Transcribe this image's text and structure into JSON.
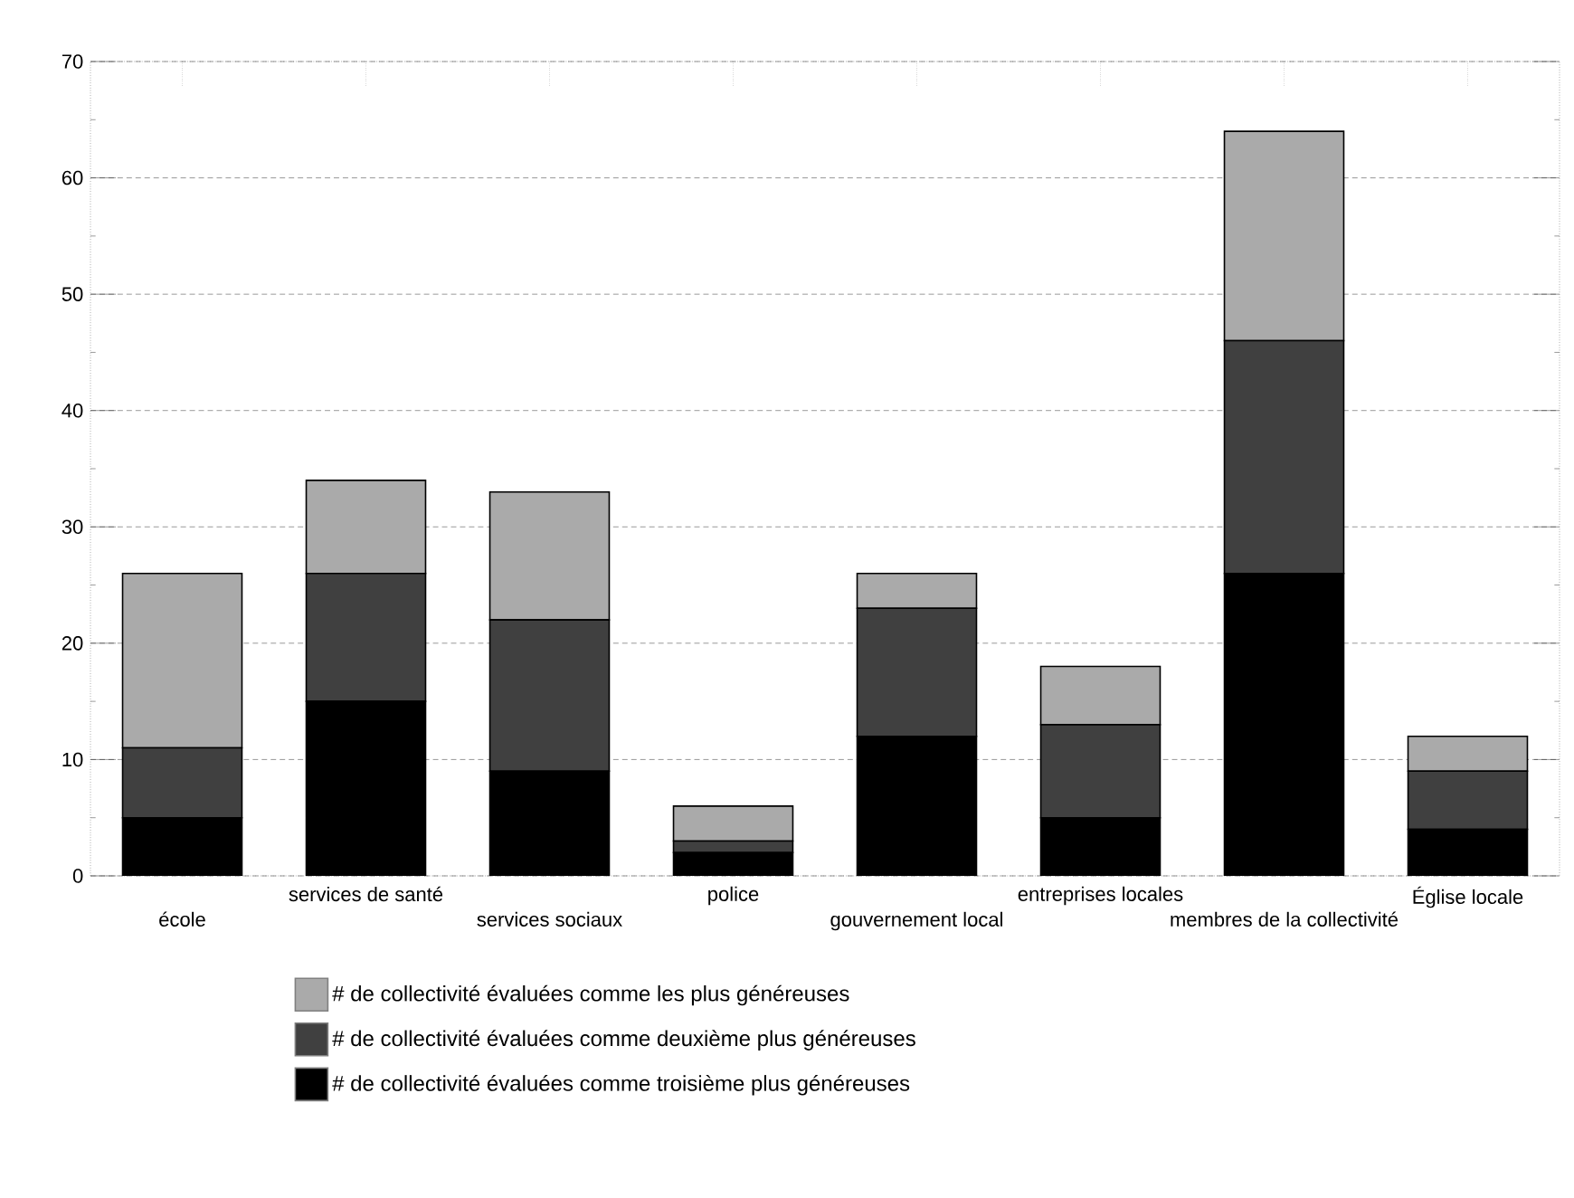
{
  "chart_data": {
    "type": "bar",
    "stacked": true,
    "categories": [
      "école",
      "services de santé",
      "services sociaux",
      "police",
      "gouvernement local",
      "entreprises locales",
      "membres de la collectivité",
      "Église locale"
    ],
    "series": [
      {
        "name": "# de collectivité évaluées comme troisième plus généreuses",
        "color": "#000000",
        "values": [
          5,
          15,
          9,
          2,
          12,
          5,
          26,
          4
        ]
      },
      {
        "name": "# de collectivité évaluées comme deuxième plus généreuses",
        "color": "#404040",
        "values": [
          6,
          11,
          13,
          1,
          11,
          8,
          20,
          5
        ]
      },
      {
        "name": "# de collectivité évaluées comme les plus généreuses",
        "color": "#aaaaaa",
        "values": [
          15,
          8,
          11,
          3,
          3,
          5,
          18,
          3
        ]
      }
    ],
    "ylim": [
      0,
      70
    ],
    "yticks": [
      0,
      10,
      20,
      30,
      40,
      50,
      60,
      70
    ],
    "grid": "y",
    "legend": "bottom"
  }
}
